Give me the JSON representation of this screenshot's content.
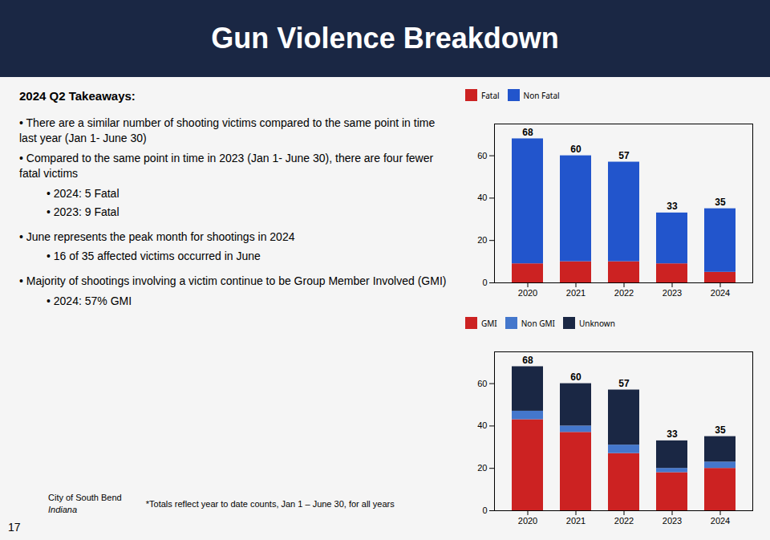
{
  "title": "Gun Violence Breakdown",
  "annotations": [
    "2024 Q2 Takeaways:",
    "• There are a similar number of shooting victims compared to the same point in time last year (Jan 1- June 30)",
    "• Compared to the same point in time in 2023 (Jan 1- June 30), there are four fewer fatal victims",
    [
      "• 2024: 5 Fatal",
      "• 2023: 9 Fatal"
    ],
    "• June represents the peak month for shootings in 2024",
    [
      "• 16 of 35 affected victims occurred in June"
    ],
    "• Majority of shootings involving a victim continue to be Group Member Involved (GMI)",
    [
      "• 2024: 57% GMI"
    ]
  ],
  "footer": [
    "City of South Bend",
    "Indiana",
    "*Totals reflect year to date counts, Jan 1 – June 30, for all years"
  ],
  "page_number": "17",
  "chart_data": [
    {
      "type": "bar",
      "stacked": true,
      "legend": "top",
      "data_labels": true,
      "grid": false,
      "categories": [
        "2020",
        "2021",
        "2022",
        "2023",
        "2024"
      ],
      "series": [
        {
          "name": "Fatal",
          "color": "#cc2222",
          "values": [
            9,
            10,
            10,
            9,
            5
          ]
        },
        {
          "name": "Non Fatal",
          "color": "#2255cc",
          "values": [
            59,
            50,
            47,
            24,
            30
          ]
        }
      ],
      "totals": [
        68,
        60,
        57,
        33,
        35
      ],
      "ylim": [
        0,
        75
      ],
      "yticks": [
        0,
        20,
        40,
        60
      ]
    },
    {
      "type": "bar",
      "stacked": true,
      "legend": "top",
      "data_labels": true,
      "grid": false,
      "categories": [
        "2020",
        "2021",
        "2022",
        "2023",
        "2024"
      ],
      "series": [
        {
          "name": "GMI",
          "color": "#cc2222",
          "values": [
            43,
            37,
            27,
            18,
            20
          ]
        },
        {
          "name": "Non GMI",
          "color": "#4477cc",
          "values": [
            4,
            3,
            4,
            2,
            3
          ]
        },
        {
          "name": "Unknown",
          "color": "#1a2744",
          "values": [
            21,
            20,
            26,
            13,
            12
          ]
        }
      ],
      "totals": [
        68,
        60,
        57,
        33,
        35
      ],
      "ylim": [
        0,
        75
      ],
      "yticks": [
        0,
        20,
        40,
        60
      ]
    }
  ]
}
